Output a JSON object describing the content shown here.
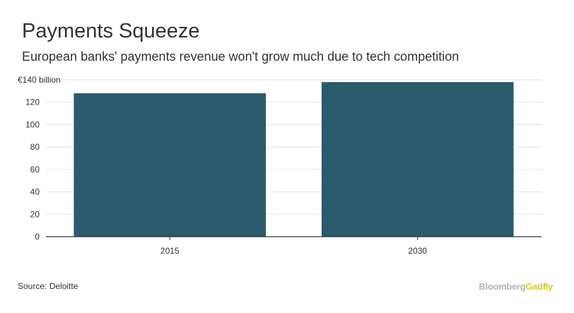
{
  "title": "Payments Squeeze",
  "subtitle": "European banks' payments revenue won't grow much due to tech competition",
  "source": "Source: Deloitte",
  "brand": {
    "part1": "Bloomberg",
    "part2": "Gadfly"
  },
  "colors": {
    "bar": "#2b5a6c",
    "grid": "#e3e3e3",
    "axis": "#333333",
    "brand_primary": "#b3b3b3",
    "brand_accent": "#d4cc21"
  },
  "chart_data": {
    "type": "bar",
    "categories": [
      "2015",
      "2030"
    ],
    "values": [
      128,
      138
    ],
    "ylim": [
      0,
      140
    ],
    "yticks": [
      0,
      20,
      40,
      60,
      80,
      100,
      120,
      140
    ],
    "ytick_labels": [
      "0",
      "20",
      "40",
      "60",
      "80",
      "100",
      "120",
      "€140 billion"
    ],
    "title": "Payments Squeeze",
    "xlabel": "",
    "ylabel": "",
    "grid": true,
    "legend": "none"
  }
}
